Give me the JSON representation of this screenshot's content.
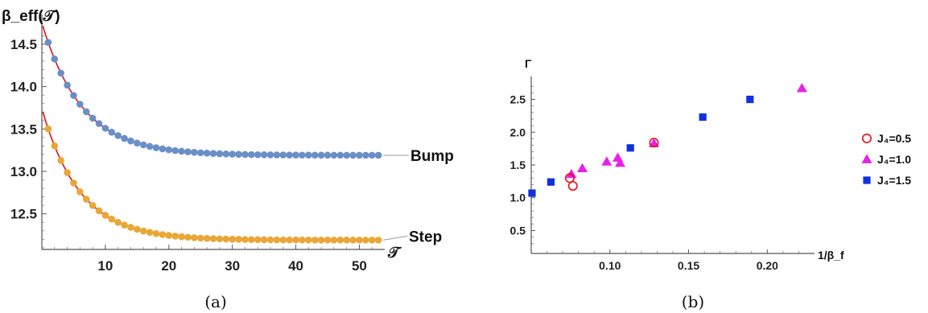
{
  "chart_data": [
    {
      "panel": "a",
      "type": "scatter",
      "caption": "(a)",
      "ylabel": "β_eff(𝒯)",
      "xlabel": "𝒯",
      "xlim": [
        0,
        54
      ],
      "ylim": [
        12.08,
        14.85
      ],
      "xticks": [
        10,
        20,
        30,
        40,
        50
      ],
      "yticks": [
        12.5,
        13.0,
        13.5,
        14.0,
        14.5
      ],
      "xtick_labels": [
        "10",
        "20",
        "30",
        "40",
        "50"
      ],
      "ytick_labels": [
        "12.5",
        "13.0",
        "13.5",
        "14.0",
        "14.5"
      ],
      "series": [
        {
          "name": "Bump",
          "color": "#6a8fc7",
          "fit_color": "#e01010",
          "x_start": 1,
          "x_end": 53,
          "x_step": 1,
          "asymptote": 13.19,
          "amplitude": 1.56,
          "decay": 6.3
        },
        {
          "name": "Step",
          "color": "#e8a736",
          "fit_color": "#e01010",
          "x_start": 1,
          "x_end": 53,
          "x_step": 1,
          "asymptote": 12.19,
          "amplitude": 1.55,
          "decay": 6.0
        }
      ]
    },
    {
      "panel": "b",
      "type": "scatter",
      "caption": "(b)",
      "ylabel": "Γ",
      "xlabel": "1/β_f",
      "xlim": [
        0.05,
        0.23
      ],
      "ylim": [
        0.15,
        2.85
      ],
      "xticks": [
        0.1,
        0.15,
        0.2
      ],
      "yticks": [
        0.5,
        1.0,
        1.5,
        2.0,
        2.5
      ],
      "xtick_labels": [
        "0.10",
        "0.15",
        "0.20"
      ],
      "ytick_labels": [
        "0.5",
        "1.0",
        "1.5",
        "2.0",
        "2.5"
      ],
      "legend_position": "right",
      "series": [
        {
          "name": "J₄=0.5",
          "marker": "circle-open",
          "color": "#e8101a",
          "points": [
            [
              0.0745,
              1.3
            ],
            [
              0.0765,
              1.18
            ],
            [
              0.128,
              1.84
            ]
          ]
        },
        {
          "name": "J₄=1.0",
          "marker": "triangle",
          "color": "#e820e8",
          "points": [
            [
              0.0755,
              1.36
            ],
            [
              0.0825,
              1.45
            ],
            [
              0.098,
              1.55
            ],
            [
              0.105,
              1.61
            ],
            [
              0.1065,
              1.53
            ],
            [
              0.128,
              1.83
            ],
            [
              0.222,
              2.67
            ]
          ]
        },
        {
          "name": "J₄=1.5",
          "marker": "square",
          "color": "#1030e0",
          "points": [
            [
              0.0505,
              1.07
            ],
            [
              0.0625,
              1.24
            ],
            [
              0.113,
              1.76
            ],
            [
              0.159,
              2.23
            ],
            [
              0.189,
              2.5
            ]
          ]
        }
      ]
    }
  ]
}
